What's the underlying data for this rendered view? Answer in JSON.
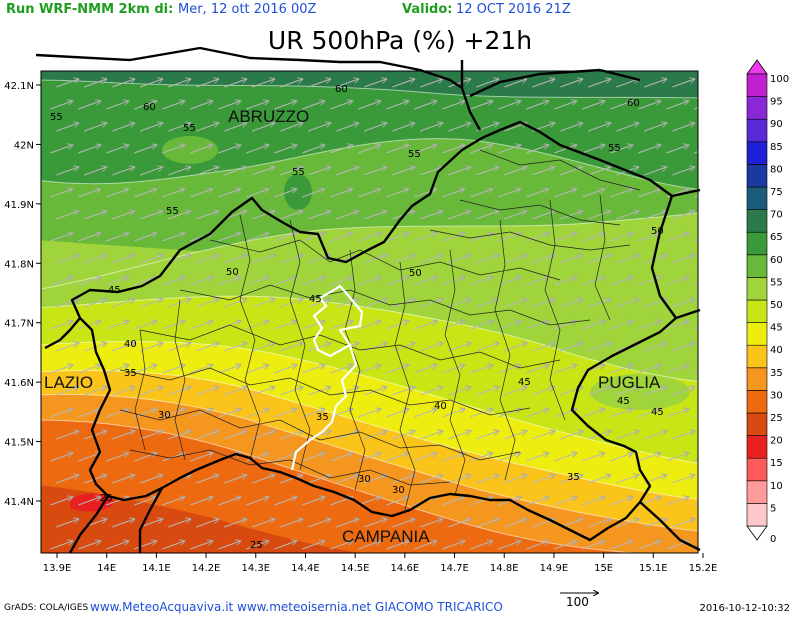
{
  "header": {
    "run_label": "Run WRF-NMM 2km di:",
    "run_date": "Mer, 12 ott 2016 00Z",
    "valid_label": "Valido:",
    "valid_date": "12 OCT 2016 21Z"
  },
  "title": "UR 500hPa (%) +21h",
  "map": {
    "regions": [
      "ABRUZZO",
      "LAZIO",
      "PUGLIA",
      "CAMPANIA"
    ],
    "x_ticks": [
      "13.9E",
      "14E",
      "14.1E",
      "14.2E",
      "14.3E",
      "14.4E",
      "14.5E",
      "14.6E",
      "14.7E",
      "14.8E",
      "14.9E",
      "15E",
      "15.1E",
      "15.2E"
    ],
    "y_ticks": [
      "42.1N",
      "42N",
      "41.9N",
      "41.8N",
      "41.7N",
      "41.6N",
      "41.5N",
      "41.4N"
    ],
    "contour_labels": [
      "60",
      "55",
      "55",
      "60",
      "55",
      "55",
      "60",
      "55",
      "55",
      "50",
      "50",
      "50",
      "45",
      "45",
      "40",
      "45",
      "35",
      "30",
      "35",
      "40",
      "45",
      "45",
      "45",
      "35",
      "30",
      "30",
      "25",
      "25"
    ]
  },
  "legend": {
    "levels": [
      "0",
      "5",
      "10",
      "15",
      "20",
      "25",
      "30",
      "35",
      "40",
      "45",
      "50",
      "55",
      "60",
      "65",
      "70",
      "75",
      "80",
      "85",
      "90",
      "95",
      "100"
    ],
    "colors": [
      "#ffffff",
      "#ffc8c8",
      "#ff9a9a",
      "#ff5a5a",
      "#e82020",
      "#d84a10",
      "#ee6a10",
      "#f5961e",
      "#fbc41a",
      "#eded10",
      "#c8e616",
      "#9fd43a",
      "#68b83a",
      "#3a9a3a",
      "#2b7a4a",
      "#1a5c7a",
      "#1a3aa0",
      "#2020d8",
      "#5a2ad8",
      "#8a28d8",
      "#c020d0",
      "#ee3aee"
    ]
  },
  "vector_reference": "100",
  "footer": {
    "grads": "GrADS: COLA/IGES",
    "credit": "www.MeteoAcquaviva.it www.meteoisernia.net GIACOMO TRICARICO",
    "timestamp": "2016-10-12-10:32"
  }
}
